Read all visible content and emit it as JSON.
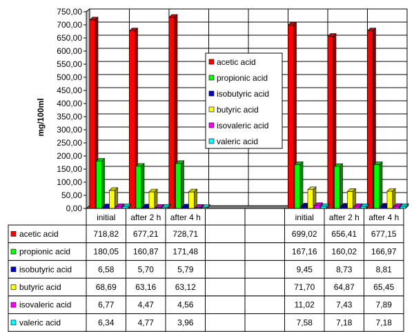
{
  "chart_data": {
    "type": "bar",
    "ylabel": "mg/100ml",
    "ylim": [
      0,
      750
    ],
    "y_step": 50,
    "y_ticks": [
      "0,00",
      "50,00",
      "100,00",
      "150,00",
      "200,00",
      "250,00",
      "300,00",
      "350,00",
      "400,00",
      "450,00",
      "500,00",
      "550,00",
      "600,00",
      "650,00",
      "700,00",
      "750,00"
    ],
    "grid": true,
    "legend_position": "center-right",
    "categories": [
      "initial",
      "after 2 h",
      "after 4 h",
      "",
      "",
      "initial",
      "after 2 h",
      "after 4 h"
    ],
    "series": [
      {
        "name": "acetic acid",
        "color": "#ff0000",
        "values": [
          718.82,
          677.21,
          728.71,
          null,
          null,
          699.02,
          656.41,
          677.15
        ],
        "labels": [
          "718,82",
          "677,21",
          "728,71",
          "",
          "",
          "699,02",
          "656,41",
          "677,15"
        ]
      },
      {
        "name": "propionic acid",
        "color": "#00ff00",
        "values": [
          180.05,
          160.87,
          171.48,
          null,
          null,
          167.16,
          160.02,
          166.97
        ],
        "labels": [
          "180,05",
          "160,87",
          "171,48",
          "",
          "",
          "167,16",
          "160,02",
          "166,97"
        ]
      },
      {
        "name": "isobutyric acid",
        "color": "#0000cc",
        "values": [
          6.58,
          5.7,
          5.79,
          null,
          null,
          9.45,
          8.73,
          8.81
        ],
        "labels": [
          "6,58",
          "5,70",
          "5,79",
          "",
          "",
          "9,45",
          "8,73",
          "8,81"
        ]
      },
      {
        "name": "butyric acid",
        "color": "#ffff00",
        "values": [
          68.69,
          63.16,
          63.12,
          null,
          null,
          71.7,
          64.87,
          65.45
        ],
        "labels": [
          "68,69",
          "63,16",
          "63,12",
          "",
          "",
          "71,70",
          "64,87",
          "65,45"
        ]
      },
      {
        "name": "isovaleric acid",
        "color": "#ff00ff",
        "values": [
          6.77,
          4.47,
          4.56,
          null,
          null,
          11.02,
          7.43,
          7.89
        ],
        "labels": [
          "6,77",
          "4,47",
          "4,56",
          "",
          "",
          "11,02",
          "7,43",
          "7,89"
        ]
      },
      {
        "name": "valeric acid",
        "color": "#00ffff",
        "values": [
          6.34,
          4.77,
          3.96,
          null,
          null,
          7.58,
          7.18,
          7.18
        ],
        "labels": [
          "6,34",
          "4,77",
          "3,96",
          "",
          "",
          "7,58",
          "7,18",
          "7,18"
        ]
      }
    ]
  }
}
